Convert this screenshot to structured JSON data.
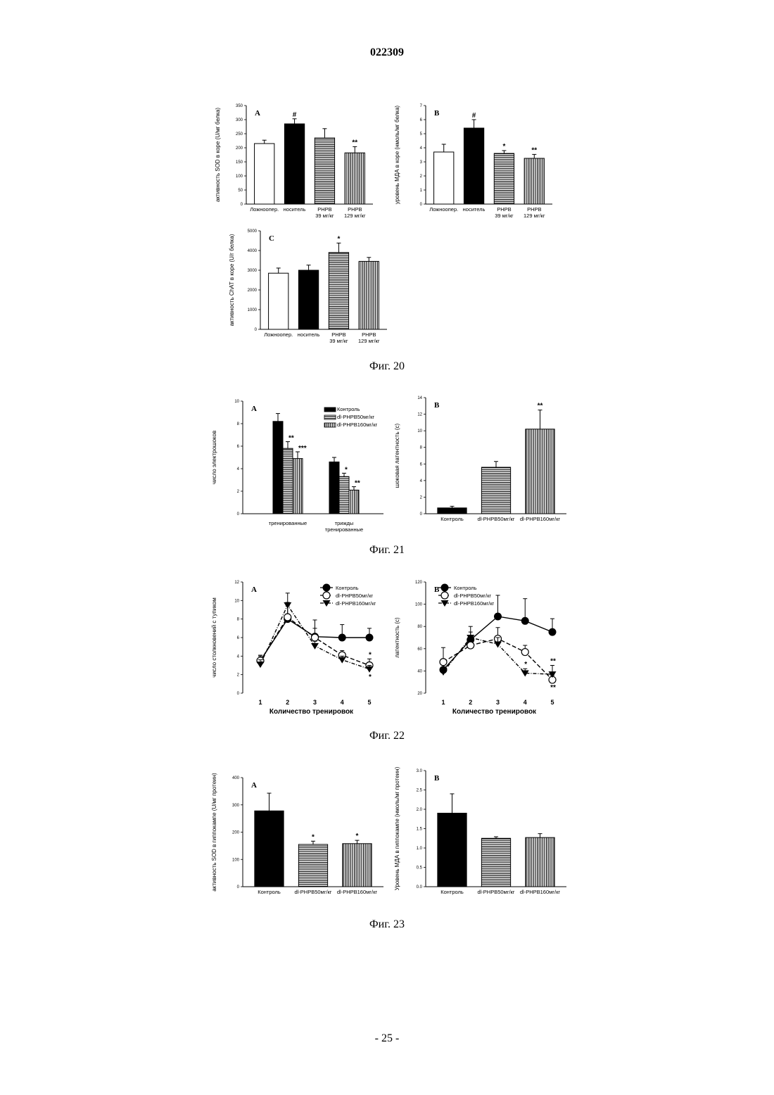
{
  "header": {
    "doc_number": "022309"
  },
  "footer": {
    "page_number": "- 25 -"
  },
  "figures": [
    {
      "caption": "Фиг. 20"
    },
    {
      "caption": "Фиг. 21"
    },
    {
      "caption": "Фиг. 22"
    },
    {
      "caption": "Фиг. 23"
    }
  ],
  "colors": {
    "black": "#000000",
    "white": "#ffffff"
  },
  "chart_data": [
    {
      "id": "fig20A",
      "type": "bar",
      "panel": "A",
      "ylabel": "активность SOD в коре (U/мг белка)",
      "ylim": [
        0,
        350
      ],
      "yticks": [
        0,
        50,
        100,
        150,
        200,
        250,
        300,
        350
      ],
      "categories": [
        "Ложноопер.",
        "носитель",
        "PHPB 39 мг/кг",
        "PHPB 129 мг/кг"
      ],
      "values": [
        215,
        285,
        235,
        182
      ],
      "errors": [
        12,
        18,
        33,
        22
      ],
      "fills": [
        "white",
        "black",
        "hstripe",
        "vstripe"
      ],
      "annotations": [
        "",
        "#",
        "",
        "**"
      ]
    },
    {
      "id": "fig20B",
      "type": "bar",
      "panel": "B",
      "ylabel": "уровень МДА в коре (нмоль/мг белка)",
      "ylim": [
        0,
        7
      ],
      "yticks": [
        0,
        1,
        2,
        3,
        4,
        5,
        6,
        7
      ],
      "categories": [
        "Ложноопер.",
        "носитель",
        "PHPB 39 мг/кг",
        "PHPB 129 мг/кг"
      ],
      "values": [
        3.7,
        5.4,
        3.6,
        3.25
      ],
      "errors": [
        0.55,
        0.6,
        0.2,
        0.28
      ],
      "fills": [
        "white",
        "black",
        "hstripe",
        "vstripe"
      ],
      "annotations": [
        "",
        "#",
        "*",
        "**"
      ]
    },
    {
      "id": "fig20C",
      "type": "bar",
      "panel": "C",
      "ylabel": "активность ChAT в коре (U/г белка)",
      "ylim": [
        0,
        5000
      ],
      "yticks": [
        0,
        1000,
        2000,
        3000,
        4000,
        5000
      ],
      "categories": [
        "Ложноопер.",
        "носитель",
        "PHPB 39 мг/кг",
        "PHPB 129 мг/кг"
      ],
      "values": [
        2850,
        3000,
        3900,
        3450
      ],
      "errors": [
        260,
        260,
        480,
        200
      ],
      "fills": [
        "white",
        "black",
        "hstripe",
        "vstripe"
      ],
      "annotations": [
        "",
        "",
        "*",
        ""
      ]
    },
    {
      "id": "fig21A",
      "type": "bar",
      "panel": "A",
      "ylabel": "число электрошоков",
      "ylim": [
        0,
        10
      ],
      "yticks": [
        0,
        2,
        4,
        6,
        8,
        10
      ],
      "categories": [
        "тренированные",
        "трижды тренированные"
      ],
      "series": [
        {
          "name": "Контроль",
          "values": [
            8.2,
            4.6
          ],
          "errors": [
            0.7,
            0.4
          ],
          "fill": "black",
          "annotations": [
            "",
            ""
          ]
        },
        {
          "name": "dl-PHPB50мг/кг",
          "values": [
            5.8,
            3.3
          ],
          "errors": [
            0.6,
            0.3
          ],
          "fill": "hstripe",
          "annotations": [
            "**",
            "*"
          ]
        },
        {
          "name": "dl-PHPB160мг/кг",
          "values": [
            4.9,
            2.1
          ],
          "errors": [
            0.6,
            0.3
          ],
          "fill": "vstripe",
          "annotations": [
            "***",
            "**"
          ]
        }
      ]
    },
    {
      "id": "fig21B",
      "type": "bar",
      "panel": "B",
      "ylabel": "шоковая латентность (с)",
      "ylim": [
        0,
        14
      ],
      "yticks": [
        0,
        2,
        4,
        6,
        8,
        10,
        12,
        14
      ],
      "categories": [
        "Контроль",
        "dl-PHPB50мг/кг",
        "dl-PHPB160мг/кг"
      ],
      "values": [
        0.7,
        5.6,
        10.2
      ],
      "errors": [
        0.2,
        0.7,
        2.3
      ],
      "fills": [
        "black",
        "hstripe",
        "vstripe"
      ],
      "annotations": [
        "",
        "",
        "**"
      ]
    },
    {
      "id": "fig22A",
      "type": "line",
      "panel": "A",
      "ylabel": "число столкновений с тупиком",
      "xlabel": "Количество тренировок",
      "ylim": [
        0,
        12
      ],
      "yticks": [
        0,
        2,
        4,
        6,
        8,
        10,
        12
      ],
      "x": [
        1,
        2,
        3,
        4,
        5
      ],
      "series": [
        {
          "name": "Контроль",
          "values": [
            3.5,
            8.0,
            6.1,
            6.0,
            6.0
          ],
          "errors": [
            0.6,
            1.8,
            1.8,
            1.4,
            1.0
          ],
          "marker": "filled-circle",
          "dash": "",
          "annotations": [
            "",
            "",
            "",
            "",
            ""
          ]
        },
        {
          "name": "dl-PHPB50мг/кг",
          "values": [
            3.5,
            8.2,
            6.0,
            4.1,
            3.0
          ],
          "errors": [
            0.5,
            1.2,
            1.0,
            0.5,
            0.7
          ],
          "marker": "open-circle",
          "dash": "6,3",
          "annotations": [
            "",
            "",
            "",
            "",
            "*"
          ]
        },
        {
          "name": "dl-PHPB160мг/кг",
          "values": [
            3.1,
            9.5,
            5.1,
            3.6,
            2.6
          ],
          "errors": [
            0.5,
            1.3,
            0.5,
            0.4,
            0.4
          ],
          "marker": "filled-triangle",
          "dash": "5,2,1,2",
          "annotations": [
            "",
            "",
            "",
            "",
            "*"
          ]
        }
      ]
    },
    {
      "id": "fig22B",
      "type": "line",
      "panel": "B",
      "ylabel": "латентность (с)",
      "xlabel": "Количество тренировок",
      "ylim": [
        20,
        120
      ],
      "yticks": [
        20,
        40,
        60,
        80,
        100,
        120
      ],
      "x": [
        1,
        2,
        3,
        4,
        5
      ],
      "series": [
        {
          "name": "Контроль",
          "values": [
            41,
            68,
            89,
            85,
            75
          ],
          "errors": [
            6,
            12,
            19,
            20,
            12
          ],
          "marker": "filled-circle",
          "dash": "",
          "annotations": [
            "",
            "",
            "",
            "",
            ""
          ]
        },
        {
          "name": "dl-PHPB50мг/кг",
          "values": [
            48,
            63,
            69,
            57,
            32
          ],
          "errors": [
            13,
            5,
            10,
            6,
            4
          ],
          "marker": "open-circle",
          "dash": "6,3",
          "annotations": [
            "",
            "",
            "",
            "",
            "**"
          ]
        },
        {
          "name": "dl-PHPB160мг/кг",
          "values": [
            39,
            70,
            64,
            38,
            37
          ],
          "errors": [
            3,
            5,
            6,
            4,
            8
          ],
          "marker": "filled-triangle",
          "dash": "5,2,1,2",
          "annotations": [
            "",
            "",
            "",
            "*",
            "**"
          ]
        }
      ]
    },
    {
      "id": "fig23A",
      "type": "bar",
      "panel": "A",
      "ylabel": "активность SOD в гиппокампе (U/мг протеин)",
      "ylim": [
        0,
        400
      ],
      "yticks": [
        0,
        100,
        200,
        300,
        400
      ],
      "categories": [
        "Контроль",
        "dl-PHPB50мг/кг",
        "dl-PHPB160мг/кг"
      ],
      "values": [
        278,
        155,
        158
      ],
      "errors": [
        65,
        12,
        12
      ],
      "fills": [
        "black",
        "hstripe",
        "vstripe"
      ],
      "annotations": [
        "",
        "*",
        "*"
      ]
    },
    {
      "id": "fig23B",
      "type": "bar",
      "panel": "B",
      "ylabel": "Уровень МДА в гиппокампе (нмоль/мг протеин)",
      "ylim": [
        0,
        3.0
      ],
      "yticks": [
        0.0,
        0.5,
        1.0,
        1.5,
        2.0,
        2.5,
        3.0
      ],
      "categories": [
        "Контроль",
        "dl-PHPB50мг/кг",
        "dl-PHPB160мг/кг"
      ],
      "values": [
        1.9,
        1.25,
        1.27
      ],
      "errors": [
        0.5,
        0.04,
        0.1
      ],
      "fills": [
        "black",
        "hstripe",
        "vstripe"
      ],
      "annotations": [
        "",
        "",
        ""
      ]
    }
  ]
}
